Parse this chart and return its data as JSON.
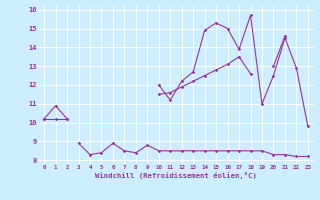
{
  "xlabel": "Windchill (Refroidissement éolien,°C)",
  "bg_color": "#cceeff",
  "line_color": "#993399",
  "grid_color": "#ffffff",
  "x": [
    0,
    1,
    2,
    3,
    4,
    5,
    6,
    7,
    8,
    9,
    10,
    11,
    12,
    13,
    14,
    15,
    16,
    17,
    18,
    19,
    20,
    21,
    22,
    23
  ],
  "line1": [
    10.2,
    10.9,
    10.2,
    null,
    null,
    null,
    null,
    null,
    null,
    null,
    12.0,
    11.2,
    12.2,
    12.7,
    14.9,
    15.3,
    15.0,
    13.9,
    15.7,
    11.0,
    12.5,
    14.5,
    12.9,
    9.8
  ],
  "line2": [
    10.2,
    10.2,
    10.2,
    null,
    null,
    null,
    null,
    null,
    null,
    null,
    11.5,
    11.6,
    11.9,
    12.2,
    12.5,
    12.8,
    13.1,
    13.5,
    12.6,
    null,
    13.0,
    14.6,
    null,
    null
  ],
  "line3": [
    null,
    null,
    null,
    8.9,
    8.3,
    8.4,
    8.9,
    8.5,
    8.4,
    8.8,
    8.5,
    8.5,
    8.5,
    8.5,
    8.5,
    8.5,
    8.5,
    8.5,
    8.5,
    8.5,
    8.3,
    8.3,
    8.2,
    8.2
  ],
  "xlim": [
    -0.5,
    23.5
  ],
  "ylim": [
    7.8,
    16.2
  ],
  "yticks": [
    8,
    9,
    10,
    11,
    12,
    13,
    14,
    15,
    16
  ],
  "xticks": [
    0,
    1,
    2,
    3,
    4,
    5,
    6,
    7,
    8,
    9,
    10,
    11,
    12,
    13,
    14,
    15,
    16,
    17,
    18,
    19,
    20,
    21,
    22,
    23
  ],
  "figsize": [
    3.2,
    2.0
  ],
  "dpi": 100
}
